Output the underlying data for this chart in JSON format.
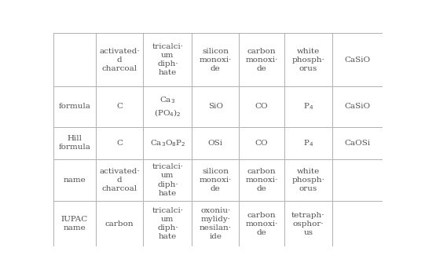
{
  "col_headers": [
    "activated·\nd\ncharcoal",
    "tricalci·\num\ndiph·\nhate",
    "silicon\nmonoxi·\nde",
    "carbon\nmonoxi·\nde",
    "white\nphosph·\norus",
    "CaSiO"
  ],
  "row_headers": [
    "formula",
    "Hill\nformula",
    "name",
    "IUPAC\nname"
  ],
  "formula_row": [
    "C",
    "Ca$_3$\n(PO$_4$)$_2$",
    "SiO",
    "CO",
    "P$_4$",
    "CaSiO"
  ],
  "hill_row": [
    "C",
    "Ca$_3$O$_8$P$_2$",
    "OSi",
    "CO",
    "P$_4$",
    "CaOSi"
  ],
  "name_row": [
    "activated·\nd\ncharcoal",
    "tricalci·\num\ndiph·\nhate",
    "silicon\nmonoxi·\nde",
    "carbon\nmonoxi·\nde",
    "white\nphosph·\norus",
    ""
  ],
  "iupac_row": [
    "carbon",
    "tricalci·\num\ndiph·\nhate",
    "oxoniu·\nmylidy·\nnesilan·\nide",
    "carbon\nmonoxi·\nde",
    "tetraph·\nosphor·\nus",
    ""
  ],
  "bg_color": "#ffffff",
  "grid_color": "#b0b0b0",
  "text_color": "#505050",
  "font_size": 7.5
}
